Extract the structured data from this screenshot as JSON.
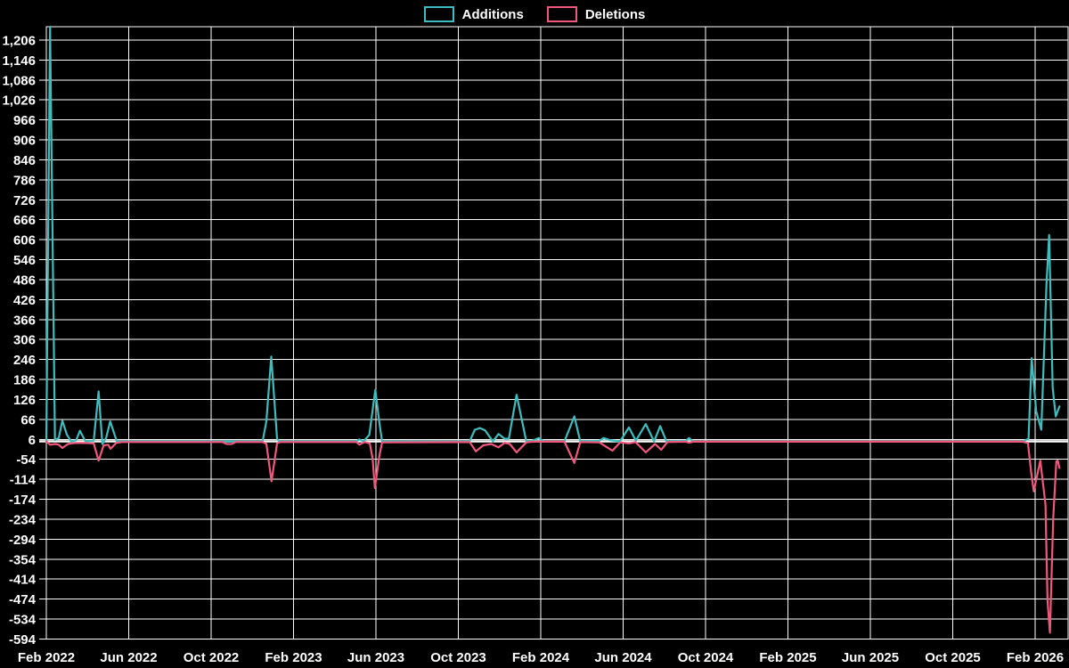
{
  "legend": {
    "items": [
      {
        "label": "Additions",
        "color": "#3dbdbd"
      },
      {
        "label": "Deletions",
        "color": "#f1577d"
      }
    ]
  },
  "colors": {
    "background": "#000000",
    "grid": "#ffffff",
    "zero_line": "#ffffff",
    "additions": "#3dbdbd",
    "deletions": "#f1577d"
  },
  "chart_data": {
    "type": "line",
    "title": "",
    "xlabel": "",
    "ylabel": "",
    "grid": true,
    "legend_position": "top-center",
    "x_axis": {
      "unit": "months since Feb 2022",
      "domain": [
        0,
        49.6
      ],
      "ticks": [
        [
          0,
          "Feb 2022"
        ],
        [
          4,
          "Jun 2022"
        ],
        [
          8,
          "Oct 2022"
        ],
        [
          12,
          "Feb 2023"
        ],
        [
          16,
          "Jun 2023"
        ],
        [
          20,
          "Oct 2023"
        ],
        [
          24,
          "Feb 2024"
        ],
        [
          28,
          "Jun 2024"
        ],
        [
          32,
          "Oct 2024"
        ],
        [
          36,
          "Feb 2025"
        ],
        [
          40,
          "Jun 2025"
        ],
        [
          44,
          "Oct 2025"
        ],
        [
          48,
          "Feb 2026"
        ]
      ]
    },
    "y_axis": {
      "ylim": [
        -594,
        1246
      ],
      "tick_step": 60,
      "ticks": [
        [
          1206,
          "1,206"
        ],
        [
          1146,
          "1,146"
        ],
        [
          1086,
          "1,086"
        ],
        [
          1026,
          "1,026"
        ],
        [
          966,
          "966"
        ],
        [
          906,
          "906"
        ],
        [
          846,
          "846"
        ],
        [
          786,
          "786"
        ],
        [
          726,
          "726"
        ],
        [
          666,
          "666"
        ],
        [
          606,
          "606"
        ],
        [
          546,
          "546"
        ],
        [
          486,
          "486"
        ],
        [
          426,
          "426"
        ],
        [
          366,
          "366"
        ],
        [
          306,
          "306"
        ],
        [
          246,
          "246"
        ],
        [
          186,
          "186"
        ],
        [
          126,
          "126"
        ],
        [
          66,
          "66"
        ],
        [
          6,
          "6"
        ],
        [
          -54,
          "-54"
        ],
        [
          -114,
          "-114"
        ],
        [
          -174,
          "-174"
        ],
        [
          -234,
          "-234"
        ],
        [
          -294,
          "-294"
        ],
        [
          -354,
          "-354"
        ],
        [
          -414,
          "-414"
        ],
        [
          -474,
          "-474"
        ],
        [
          -534,
          "-534"
        ],
        [
          -594,
          "-594"
        ]
      ]
    },
    "zero_line": true,
    "series": [
      {
        "name": "Additions",
        "color": "#3dbdbd",
        "points": [
          [
            0,
            4
          ],
          [
            0.18,
            1246
          ],
          [
            0.42,
            4
          ],
          [
            0.6,
            10
          ],
          [
            0.78,
            62
          ],
          [
            1.0,
            20
          ],
          [
            1.2,
            0
          ],
          [
            1.45,
            3
          ],
          [
            1.63,
            32
          ],
          [
            1.9,
            0
          ],
          [
            2.3,
            2
          ],
          [
            2.54,
            150
          ],
          [
            2.72,
            -8
          ],
          [
            2.9,
            10
          ],
          [
            3.1,
            60
          ],
          [
            3.42,
            0
          ],
          [
            8.0,
            0
          ],
          [
            10.5,
            0
          ],
          [
            10.68,
            60
          ],
          [
            10.92,
            255
          ],
          [
            11.2,
            8
          ],
          [
            11.3,
            0
          ],
          [
            15.05,
            0
          ],
          [
            15.2,
            6
          ],
          [
            15.4,
            0
          ],
          [
            15.68,
            20
          ],
          [
            15.97,
            155
          ],
          [
            16.17,
            55
          ],
          [
            16.3,
            0
          ],
          [
            20.55,
            0
          ],
          [
            20.8,
            35
          ],
          [
            21.05,
            40
          ],
          [
            21.3,
            33
          ],
          [
            21.68,
            0
          ],
          [
            21.95,
            22
          ],
          [
            22.25,
            8
          ],
          [
            22.45,
            8
          ],
          [
            22.83,
            140
          ],
          [
            23.3,
            0
          ],
          [
            23.6,
            2
          ],
          [
            23.9,
            10
          ],
          [
            24.15,
            0
          ],
          [
            25.15,
            0
          ],
          [
            25.63,
            75
          ],
          [
            25.92,
            0
          ],
          [
            26.85,
            2
          ],
          [
            27.05,
            10
          ],
          [
            27.35,
            4
          ],
          [
            27.85,
            0
          ],
          [
            28.28,
            42
          ],
          [
            28.62,
            2
          ],
          [
            29.1,
            52
          ],
          [
            29.5,
            0
          ],
          [
            29.8,
            46
          ],
          [
            30.1,
            0
          ],
          [
            31.05,
            2
          ],
          [
            31.2,
            10
          ],
          [
            31.38,
            0
          ],
          [
            47.4,
            0
          ],
          [
            47.68,
            8
          ],
          [
            47.83,
            250
          ],
          [
            48.05,
            90
          ],
          [
            48.3,
            35
          ],
          [
            48.55,
            470
          ],
          [
            48.68,
            620
          ],
          [
            48.85,
            160
          ],
          [
            49.0,
            75
          ],
          [
            49.18,
            105
          ]
        ]
      },
      {
        "name": "Deletions",
        "color": "#f1577d",
        "points": [
          [
            0,
            0
          ],
          [
            0.18,
            -10
          ],
          [
            0.45,
            -8
          ],
          [
            0.6,
            -10
          ],
          [
            0.78,
            -20
          ],
          [
            1.05,
            -8
          ],
          [
            1.35,
            -5
          ],
          [
            1.9,
            -5
          ],
          [
            2.3,
            -6
          ],
          [
            2.54,
            -58
          ],
          [
            2.78,
            -12
          ],
          [
            3.0,
            -10
          ],
          [
            3.12,
            -22
          ],
          [
            3.4,
            -4
          ],
          [
            3.7,
            -2
          ],
          [
            8.55,
            -2
          ],
          [
            8.75,
            -8
          ],
          [
            9.0,
            -8
          ],
          [
            9.2,
            -2
          ],
          [
            10.5,
            -2
          ],
          [
            10.68,
            -7
          ],
          [
            10.93,
            -120
          ],
          [
            11.2,
            -6
          ],
          [
            11.35,
            -2
          ],
          [
            15.05,
            -2
          ],
          [
            15.2,
            -10
          ],
          [
            15.45,
            -2
          ],
          [
            15.7,
            -6
          ],
          [
            15.84,
            -52
          ],
          [
            15.95,
            -140
          ],
          [
            16.17,
            -43
          ],
          [
            16.3,
            -3
          ],
          [
            20.55,
            -2
          ],
          [
            20.85,
            -30
          ],
          [
            21.2,
            -12
          ],
          [
            21.6,
            -8
          ],
          [
            21.95,
            -18
          ],
          [
            22.25,
            -4
          ],
          [
            22.5,
            -8
          ],
          [
            22.83,
            -33
          ],
          [
            23.3,
            -3
          ],
          [
            23.6,
            -1
          ],
          [
            25.15,
            -1
          ],
          [
            25.63,
            -65
          ],
          [
            25.92,
            -2
          ],
          [
            26.85,
            -3
          ],
          [
            27.15,
            -15
          ],
          [
            27.48,
            -28
          ],
          [
            27.85,
            -3
          ],
          [
            28.3,
            -6
          ],
          [
            28.6,
            -2
          ],
          [
            29.1,
            -33
          ],
          [
            29.55,
            -8
          ],
          [
            29.85,
            -25
          ],
          [
            30.15,
            -2
          ],
          [
            31.05,
            -1
          ],
          [
            31.2,
            -4
          ],
          [
            31.4,
            -1
          ],
          [
            47.4,
            -1
          ],
          [
            47.65,
            -5
          ],
          [
            47.8,
            -90
          ],
          [
            47.93,
            -150
          ],
          [
            48.25,
            -58
          ],
          [
            48.5,
            -190
          ],
          [
            48.6,
            -480
          ],
          [
            48.72,
            -575
          ],
          [
            48.88,
            -230
          ],
          [
            49.03,
            -60
          ],
          [
            49.1,
            -58
          ],
          [
            49.18,
            -80
          ]
        ]
      }
    ]
  }
}
